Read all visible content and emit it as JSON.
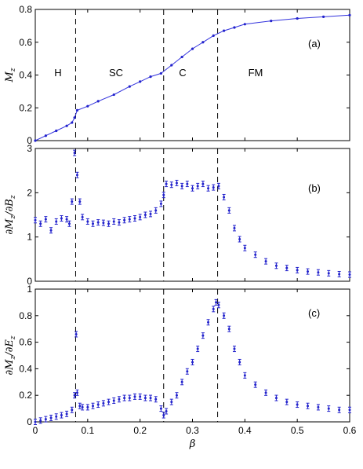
{
  "chart_data": [
    {
      "id": "a",
      "type": "line",
      "ylabel": "M_z",
      "ylim": [
        0,
        0.8
      ],
      "yticks": [
        "0",
        "0.2",
        "0.4",
        "0.6",
        "0.8"
      ],
      "panel_label": "(a)",
      "region_labels": [
        "H",
        "SC",
        "C",
        "FM"
      ],
      "series": [
        {
          "x": [
            0.0,
            0.02,
            0.04,
            0.06,
            0.07,
            0.075,
            0.08,
            0.1,
            0.12,
            0.15,
            0.18,
            0.2,
            0.22,
            0.24,
            0.26,
            0.28,
            0.3,
            0.32,
            0.34,
            0.36,
            0.38,
            0.4,
            0.45,
            0.5,
            0.55,
            0.6
          ],
          "y": [
            0.0,
            0.03,
            0.06,
            0.09,
            0.11,
            0.14,
            0.185,
            0.21,
            0.24,
            0.28,
            0.33,
            0.36,
            0.39,
            0.41,
            0.46,
            0.51,
            0.56,
            0.6,
            0.64,
            0.67,
            0.69,
            0.71,
            0.73,
            0.745,
            0.755,
            0.765
          ]
        }
      ]
    },
    {
      "id": "b",
      "type": "scatter",
      "ylabel": "∂M_z/∂B_z",
      "ylim": [
        0,
        3
      ],
      "yticks": [
        "0",
        "1",
        "2",
        "3"
      ],
      "panel_label": "(b)",
      "series": [
        {
          "x": [
            0.0,
            0.01,
            0.02,
            0.03,
            0.04,
            0.05,
            0.06,
            0.065,
            0.07,
            0.075,
            0.08,
            0.085,
            0.09,
            0.1,
            0.11,
            0.12,
            0.13,
            0.14,
            0.15,
            0.16,
            0.17,
            0.18,
            0.19,
            0.2,
            0.21,
            0.22,
            0.23,
            0.24,
            0.245,
            0.25,
            0.26,
            0.27,
            0.28,
            0.29,
            0.3,
            0.31,
            0.32,
            0.33,
            0.34,
            0.35,
            0.36,
            0.37,
            0.38,
            0.39,
            0.4,
            0.42,
            0.44,
            0.46,
            0.48,
            0.5,
            0.52,
            0.54,
            0.56,
            0.58,
            0.6
          ],
          "y": [
            1.38,
            1.3,
            1.4,
            1.15,
            1.35,
            1.42,
            1.4,
            1.3,
            1.8,
            2.9,
            2.4,
            1.8,
            1.45,
            1.35,
            1.3,
            1.33,
            1.32,
            1.3,
            1.35,
            1.33,
            1.38,
            1.4,
            1.42,
            1.45,
            1.5,
            1.52,
            1.6,
            1.75,
            1.95,
            2.2,
            2.18,
            2.22,
            2.15,
            2.2,
            2.1,
            2.15,
            2.2,
            2.1,
            2.12,
            2.15,
            1.9,
            1.6,
            1.2,
            0.95,
            0.75,
            0.6,
            0.45,
            0.35,
            0.3,
            0.25,
            0.22,
            0.2,
            0.18,
            0.16,
            0.15
          ]
        }
      ]
    },
    {
      "id": "c",
      "type": "scatter",
      "xlabel": "β",
      "ylabel": "∂M_z/∂E_z",
      "xlim": [
        0,
        0.6
      ],
      "ylim": [
        0,
        1
      ],
      "xticks": [
        "0",
        "0.1",
        "0.2",
        "0.3",
        "0.4",
        "0.5",
        "0.6"
      ],
      "yticks": [
        "0",
        "0.2",
        "0.4",
        "0.6",
        "0.8",
        "1"
      ],
      "panel_label": "(c)",
      "series": [
        {
          "x": [
            0.0,
            0.01,
            0.02,
            0.03,
            0.04,
            0.05,
            0.06,
            0.07,
            0.075,
            0.078,
            0.08,
            0.085,
            0.09,
            0.1,
            0.11,
            0.12,
            0.13,
            0.14,
            0.15,
            0.16,
            0.17,
            0.18,
            0.19,
            0.2,
            0.21,
            0.22,
            0.23,
            0.24,
            0.245,
            0.25,
            0.26,
            0.27,
            0.28,
            0.29,
            0.3,
            0.31,
            0.32,
            0.33,
            0.34,
            0.345,
            0.35,
            0.36,
            0.37,
            0.38,
            0.39,
            0.4,
            0.42,
            0.44,
            0.46,
            0.48,
            0.5,
            0.52,
            0.54,
            0.56,
            0.58,
            0.6
          ],
          "y": [
            0.0,
            0.01,
            0.02,
            0.03,
            0.04,
            0.05,
            0.06,
            0.09,
            0.2,
            0.66,
            0.22,
            0.12,
            0.11,
            0.11,
            0.12,
            0.13,
            0.14,
            0.15,
            0.16,
            0.17,
            0.18,
            0.18,
            0.19,
            0.19,
            0.18,
            0.18,
            0.17,
            0.1,
            0.05,
            0.08,
            0.15,
            0.2,
            0.3,
            0.38,
            0.45,
            0.55,
            0.65,
            0.75,
            0.85,
            0.9,
            0.88,
            0.8,
            0.7,
            0.55,
            0.45,
            0.35,
            0.28,
            0.22,
            0.18,
            0.15,
            0.13,
            0.12,
            0.11,
            0.1,
            0.09,
            0.09
          ]
        }
      ]
    }
  ],
  "phase_boundaries": [
    0.077,
    0.245,
    0.348
  ]
}
